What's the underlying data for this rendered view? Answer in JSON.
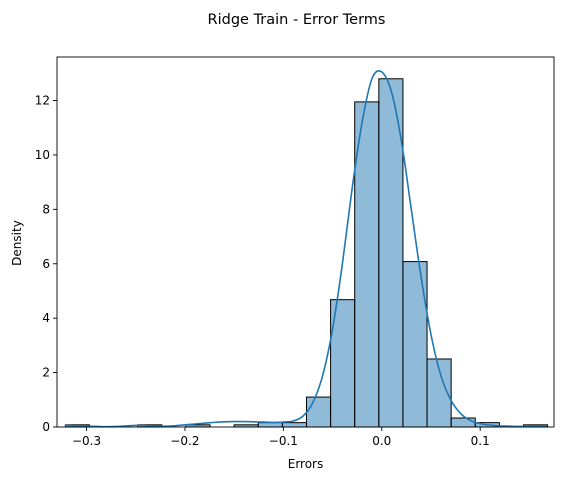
{
  "chart_data": {
    "type": "histogram",
    "title": "Ridge Train - Error Terms",
    "xlabel": "Errors",
    "ylabel": "Density",
    "xlim": [
      -0.33,
      0.175
    ],
    "ylim": [
      0,
      13.6
    ],
    "xticks": [
      -0.3,
      -0.2,
      -0.1,
      0.0,
      0.1
    ],
    "xtick_labels": [
      "−0.3",
      "−0.2",
      "−0.1",
      "0.0",
      "0.1"
    ],
    "yticks": [
      0,
      2,
      4,
      6,
      8,
      10,
      12
    ],
    "ytick_labels": [
      "0",
      "2",
      "4",
      "6",
      "8",
      "10",
      "12"
    ],
    "grid": false,
    "legend": "none",
    "bin_width": 0.0245,
    "bins": [
      {
        "x0": -0.3215,
        "x1": -0.297,
        "density": 0.08
      },
      {
        "x0": -0.297,
        "x1": -0.2725,
        "density": 0.0
      },
      {
        "x0": -0.2725,
        "x1": -0.248,
        "density": 0.0
      },
      {
        "x0": -0.248,
        "x1": -0.2235,
        "density": 0.08
      },
      {
        "x0": -0.2235,
        "x1": -0.199,
        "density": 0.0
      },
      {
        "x0": -0.199,
        "x1": -0.1745,
        "density": 0.08
      },
      {
        "x0": -0.1745,
        "x1": -0.15,
        "density": 0.0
      },
      {
        "x0": -0.15,
        "x1": -0.1255,
        "density": 0.08
      },
      {
        "x0": -0.1255,
        "x1": -0.101,
        "density": 0.16
      },
      {
        "x0": -0.101,
        "x1": -0.0765,
        "density": 0.16
      },
      {
        "x0": -0.0765,
        "x1": -0.052,
        "density": 1.1
      },
      {
        "x0": -0.052,
        "x1": -0.0275,
        "density": 4.68
      },
      {
        "x0": -0.0275,
        "x1": -0.003,
        "density": 11.95
      },
      {
        "x0": -0.003,
        "x1": 0.0215,
        "density": 12.8
      },
      {
        "x0": 0.0215,
        "x1": 0.046,
        "density": 6.08
      },
      {
        "x0": 0.046,
        "x1": 0.0705,
        "density": 2.5
      },
      {
        "x0": 0.0705,
        "x1": 0.095,
        "density": 0.33
      },
      {
        "x0": 0.095,
        "x1": 0.1195,
        "density": 0.16
      },
      {
        "x0": 0.1195,
        "x1": 0.144,
        "density": 0.0
      },
      {
        "x0": 0.144,
        "x1": 0.1685,
        "density": 0.08
      }
    ],
    "kde": {
      "x": [
        -0.322,
        -0.31,
        -0.3,
        -0.29,
        -0.28,
        -0.27,
        -0.26,
        -0.25,
        -0.24,
        -0.23,
        -0.22,
        -0.21,
        -0.2,
        -0.19,
        -0.18,
        -0.17,
        -0.16,
        -0.15,
        -0.14,
        -0.13,
        -0.12,
        -0.11,
        -0.1,
        -0.09,
        -0.08,
        -0.07,
        -0.06,
        -0.05,
        -0.04,
        -0.03,
        -0.02,
        -0.01,
        0.0,
        0.01,
        0.02,
        0.03,
        0.04,
        0.05,
        0.06,
        0.07,
        0.08,
        0.09,
        0.1,
        0.11,
        0.12,
        0.13,
        0.14,
        0.15,
        0.16,
        0.168
      ],
      "y": [
        0.06,
        0.04,
        0.03,
        0.02,
        0.01,
        0.02,
        0.04,
        0.06,
        0.05,
        0.03,
        0.03,
        0.05,
        0.08,
        0.11,
        0.14,
        0.17,
        0.19,
        0.2,
        0.2,
        0.19,
        0.18,
        0.17,
        0.18,
        0.22,
        0.4,
        0.9,
        1.9,
        3.6,
        6.0,
        8.8,
        11.2,
        12.8,
        13.05,
        12.3,
        10.5,
        8.0,
        5.5,
        3.4,
        1.9,
        1.0,
        0.5,
        0.24,
        0.12,
        0.07,
        0.04,
        0.03,
        0.02,
        0.02,
        0.02,
        0.02
      ]
    },
    "colors": {
      "bar_fill": "#1f77b4",
      "bar_opacity": 0.5,
      "bar_edge": "#000000",
      "kde_line": "#1f77b4"
    }
  }
}
